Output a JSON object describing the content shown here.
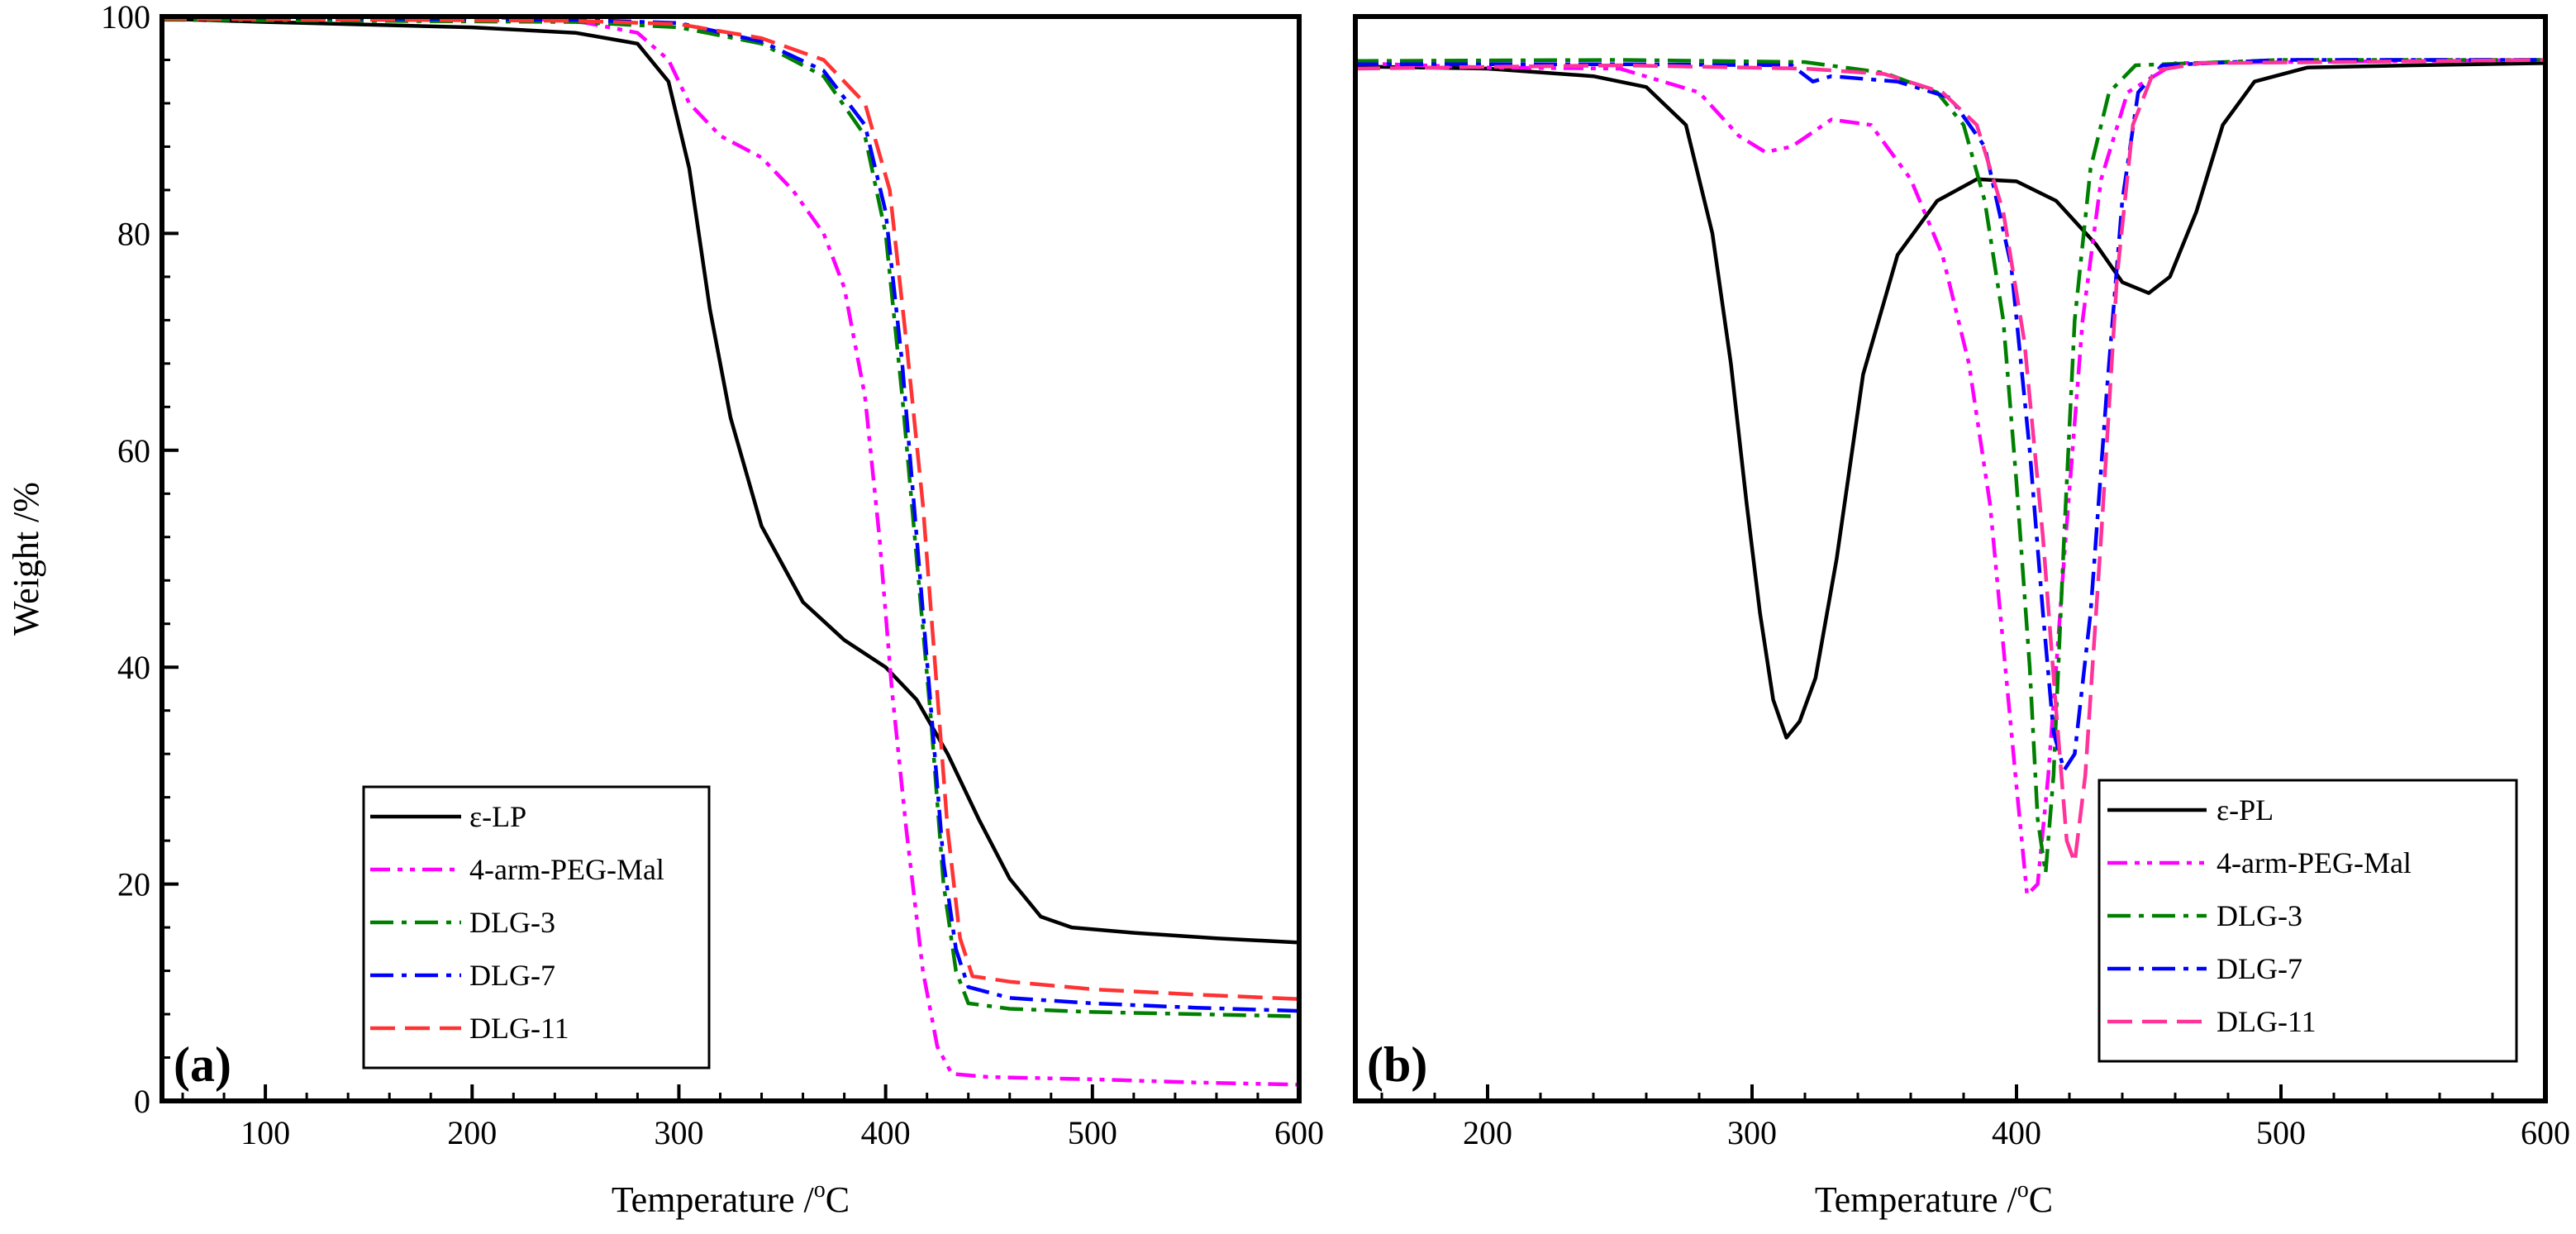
{
  "chart_data": [
    {
      "id": "a",
      "type": "line",
      "panel_label": "(a)",
      "xlabel": "Temperature /",
      "xlabel_unit_sup": "o",
      "xlabel_unit": "C",
      "ylabel": "Weight /%",
      "xlim": [
        50,
        600
      ],
      "ylim": [
        0,
        100
      ],
      "x_ticks": [
        100,
        200,
        300,
        400,
        500,
        600
      ],
      "x_tick_labels": [
        "100",
        "200",
        "300",
        "400",
        "500",
        "600"
      ],
      "y_ticks": [
        0,
        20,
        40,
        60,
        80,
        100
      ],
      "y_tick_labels": [
        "0",
        "20",
        "40",
        "60",
        "80",
        "100"
      ],
      "legend_position": "bottom-left",
      "series": [
        {
          "name": "ε-LP",
          "color": "#000000",
          "style": "solid",
          "points": [
            [
              50,
              99.8
            ],
            [
              100,
              99.5
            ],
            [
              200,
              99
            ],
            [
              250,
              98.5
            ],
            [
              280,
              97.5
            ],
            [
              295,
              94
            ],
            [
              305,
              86
            ],
            [
              315,
              73
            ],
            [
              325,
              63
            ],
            [
              340,
              53
            ],
            [
              360,
              46
            ],
            [
              380,
              42.5
            ],
            [
              400,
              40
            ],
            [
              415,
              37
            ],
            [
              430,
              32
            ],
            [
              445,
              26
            ],
            [
              460,
              20.5
            ],
            [
              475,
              17
            ],
            [
              490,
              16
            ],
            [
              520,
              15.5
            ],
            [
              560,
              15
            ],
            [
              600,
              14.6
            ]
          ]
        },
        {
          "name": "4-arm-PEG-Mal",
          "color": "#ff00ff",
          "style": "dashdotdot",
          "points": [
            [
              50,
              100
            ],
            [
              150,
              100
            ],
            [
              200,
              100
            ],
            [
              250,
              99.6
            ],
            [
              280,
              98.5
            ],
            [
              295,
              96
            ],
            [
              305,
              92
            ],
            [
              320,
              89
            ],
            [
              340,
              87
            ],
            [
              355,
              84
            ],
            [
              370,
              80
            ],
            [
              380,
              75
            ],
            [
              390,
              65
            ],
            [
              397,
              52
            ],
            [
              403,
              38
            ],
            [
              410,
              25
            ],
            [
              418,
              12
            ],
            [
              425,
              5
            ],
            [
              432,
              2.5
            ],
            [
              450,
              2.2
            ],
            [
              500,
              2
            ],
            [
              550,
              1.7
            ],
            [
              600,
              1.5
            ]
          ]
        },
        {
          "name": "DLG-3",
          "color": "#008000",
          "style": "dashdot",
          "points": [
            [
              50,
              99.7
            ],
            [
              150,
              99.6
            ],
            [
              250,
              99.5
            ],
            [
              300,
              99
            ],
            [
              340,
              97.5
            ],
            [
              370,
              94.5
            ],
            [
              390,
              89
            ],
            [
              400,
              80
            ],
            [
              408,
              65
            ],
            [
              415,
              50
            ],
            [
              422,
              35
            ],
            [
              428,
              20
            ],
            [
              434,
              12
            ],
            [
              440,
              9
            ],
            [
              460,
              8.5
            ],
            [
              500,
              8.2
            ],
            [
              550,
              8
            ],
            [
              600,
              7.8
            ]
          ]
        },
        {
          "name": "DLG-7",
          "color": "#0000ff",
          "style": "dashdot",
          "points": [
            [
              50,
              100
            ],
            [
              150,
              99.8
            ],
            [
              250,
              99.7
            ],
            [
              300,
              99.4
            ],
            [
              340,
              97.7
            ],
            [
              370,
              95
            ],
            [
              390,
              90
            ],
            [
              400,
              82
            ],
            [
              408,
              68
            ],
            [
              415,
              52
            ],
            [
              422,
              36
            ],
            [
              428,
              22
            ],
            [
              434,
              14
            ],
            [
              440,
              10.5
            ],
            [
              460,
              9.5
            ],
            [
              500,
              9
            ],
            [
              550,
              8.6
            ],
            [
              600,
              8.3
            ]
          ]
        },
        {
          "name": "DLG-11",
          "color": "#ff3333",
          "style": "dashed",
          "points": [
            [
              50,
              99.8
            ],
            [
              150,
              99.7
            ],
            [
              250,
              99.6
            ],
            [
              300,
              99.3
            ],
            [
              340,
              98
            ],
            [
              370,
              96
            ],
            [
              390,
              92
            ],
            [
              402,
              84
            ],
            [
              410,
              70
            ],
            [
              418,
              55
            ],
            [
              424,
              40
            ],
            [
              430,
              25
            ],
            [
              436,
              15
            ],
            [
              442,
              11.5
            ],
            [
              460,
              11
            ],
            [
              500,
              10.3
            ],
            [
              550,
              9.8
            ],
            [
              600,
              9.4
            ]
          ]
        }
      ]
    },
    {
      "id": "b",
      "type": "line",
      "panel_label": "(b)",
      "xlabel": "Temperature /",
      "xlabel_unit_sup": "o",
      "xlabel_unit": "C",
      "ylabel": "",
      "xlim": [
        150,
        600
      ],
      "ylim": [
        0,
        1
      ],
      "x_ticks": [
        200,
        300,
        400,
        500,
        600
      ],
      "x_tick_labels": [
        "200",
        "300",
        "400",
        "500",
        "600"
      ],
      "y_ticks": [],
      "legend_position": "bottom-right",
      "series": [
        {
          "name": "ε-PL",
          "color": "#000000",
          "style": "solid",
          "points": [
            [
              150,
              0.954
            ],
            [
              200,
              0.952
            ],
            [
              240,
              0.945
            ],
            [
              260,
              0.935
            ],
            [
              275,
              0.9
            ],
            [
              285,
              0.8
            ],
            [
              292,
              0.68
            ],
            [
              298,
              0.55
            ],
            [
              303,
              0.45
            ],
            [
              308,
              0.37
            ],
            [
              313,
              0.335
            ],
            [
              318,
              0.35
            ],
            [
              324,
              0.39
            ],
            [
              332,
              0.5
            ],
            [
              342,
              0.67
            ],
            [
              355,
              0.78
            ],
            [
              370,
              0.83
            ],
            [
              385,
              0.85
            ],
            [
              400,
              0.848
            ],
            [
              415,
              0.83
            ],
            [
              430,
              0.79
            ],
            [
              440,
              0.755
            ],
            [
              450,
              0.745
            ],
            [
              458,
              0.76
            ],
            [
              468,
              0.82
            ],
            [
              478,
              0.9
            ],
            [
              490,
              0.94
            ],
            [
              510,
              0.953
            ],
            [
              550,
              0.955
            ],
            [
              600,
              0.957
            ]
          ]
        },
        {
          "name": "4-arm-PEG-Mal",
          "color": "#ff00ff",
          "style": "dashdotdot",
          "points": [
            [
              150,
              0.957
            ],
            [
              200,
              0.953
            ],
            [
              250,
              0.952
            ],
            [
              280,
              0.93
            ],
            [
              295,
              0.89
            ],
            [
              305,
              0.875
            ],
            [
              315,
              0.88
            ],
            [
              330,
              0.905
            ],
            [
              345,
              0.9
            ],
            [
              360,
              0.85
            ],
            [
              372,
              0.78
            ],
            [
              382,
              0.68
            ],
            [
              390,
              0.55
            ],
            [
              395,
              0.42
            ],
            [
              400,
              0.29
            ],
            [
              404,
              0.19
            ],
            [
              408,
              0.2
            ],
            [
              412,
              0.3
            ],
            [
              418,
              0.5
            ],
            [
              425,
              0.72
            ],
            [
              432,
              0.85
            ],
            [
              442,
              0.93
            ],
            [
              460,
              0.957
            ],
            [
              500,
              0.958
            ],
            [
              600,
              0.96
            ]
          ]
        },
        {
          "name": "DLG-3",
          "color": "#008000",
          "style": "dashdot",
          "points": [
            [
              150,
              0.959
            ],
            [
              250,
              0.96
            ],
            [
              320,
              0.958
            ],
            [
              350,
              0.948
            ],
            [
              370,
              0.93
            ],
            [
              380,
              0.9
            ],
            [
              388,
              0.83
            ],
            [
              395,
              0.72
            ],
            [
              400,
              0.57
            ],
            [
              405,
              0.4
            ],
            [
              408,
              0.26
            ],
            [
              411,
              0.21
            ],
            [
              414,
              0.3
            ],
            [
              418,
              0.52
            ],
            [
              422,
              0.72
            ],
            [
              428,
              0.86
            ],
            [
              435,
              0.93
            ],
            [
              445,
              0.955
            ],
            [
              500,
              0.96
            ],
            [
              600,
              0.96
            ]
          ]
        },
        {
          "name": "DLG-7",
          "color": "#0000ff",
          "style": "dashdot",
          "points": [
            [
              150,
              0.956
            ],
            [
              250,
              0.956
            ],
            [
              315,
              0.955
            ],
            [
              323,
              0.94
            ],
            [
              330,
              0.945
            ],
            [
              355,
              0.94
            ],
            [
              375,
              0.925
            ],
            [
              388,
              0.88
            ],
            [
              398,
              0.77
            ],
            [
              405,
              0.6
            ],
            [
              410,
              0.45
            ],
            [
              414,
              0.34
            ],
            [
              418,
              0.305
            ],
            [
              422,
              0.32
            ],
            [
              428,
              0.45
            ],
            [
              434,
              0.65
            ],
            [
              440,
              0.83
            ],
            [
              446,
              0.93
            ],
            [
              455,
              0.955
            ],
            [
              500,
              0.96
            ],
            [
              600,
              0.96
            ]
          ]
        },
        {
          "name": "DLG-11",
          "color": "#ff3399",
          "style": "dashed",
          "points": [
            [
              150,
              0.952
            ],
            [
              250,
              0.955
            ],
            [
              320,
              0.952
            ],
            [
              350,
              0.947
            ],
            [
              372,
              0.93
            ],
            [
              385,
              0.9
            ],
            [
              395,
              0.82
            ],
            [
              403,
              0.7
            ],
            [
              410,
              0.52
            ],
            [
              415,
              0.36
            ],
            [
              419,
              0.24
            ],
            [
              422,
              0.22
            ],
            [
              426,
              0.3
            ],
            [
              432,
              0.52
            ],
            [
              438,
              0.76
            ],
            [
              444,
              0.9
            ],
            [
              452,
              0.95
            ],
            [
              470,
              0.957
            ],
            [
              520,
              0.958
            ],
            [
              600,
              0.96
            ]
          ]
        }
      ]
    }
  ]
}
